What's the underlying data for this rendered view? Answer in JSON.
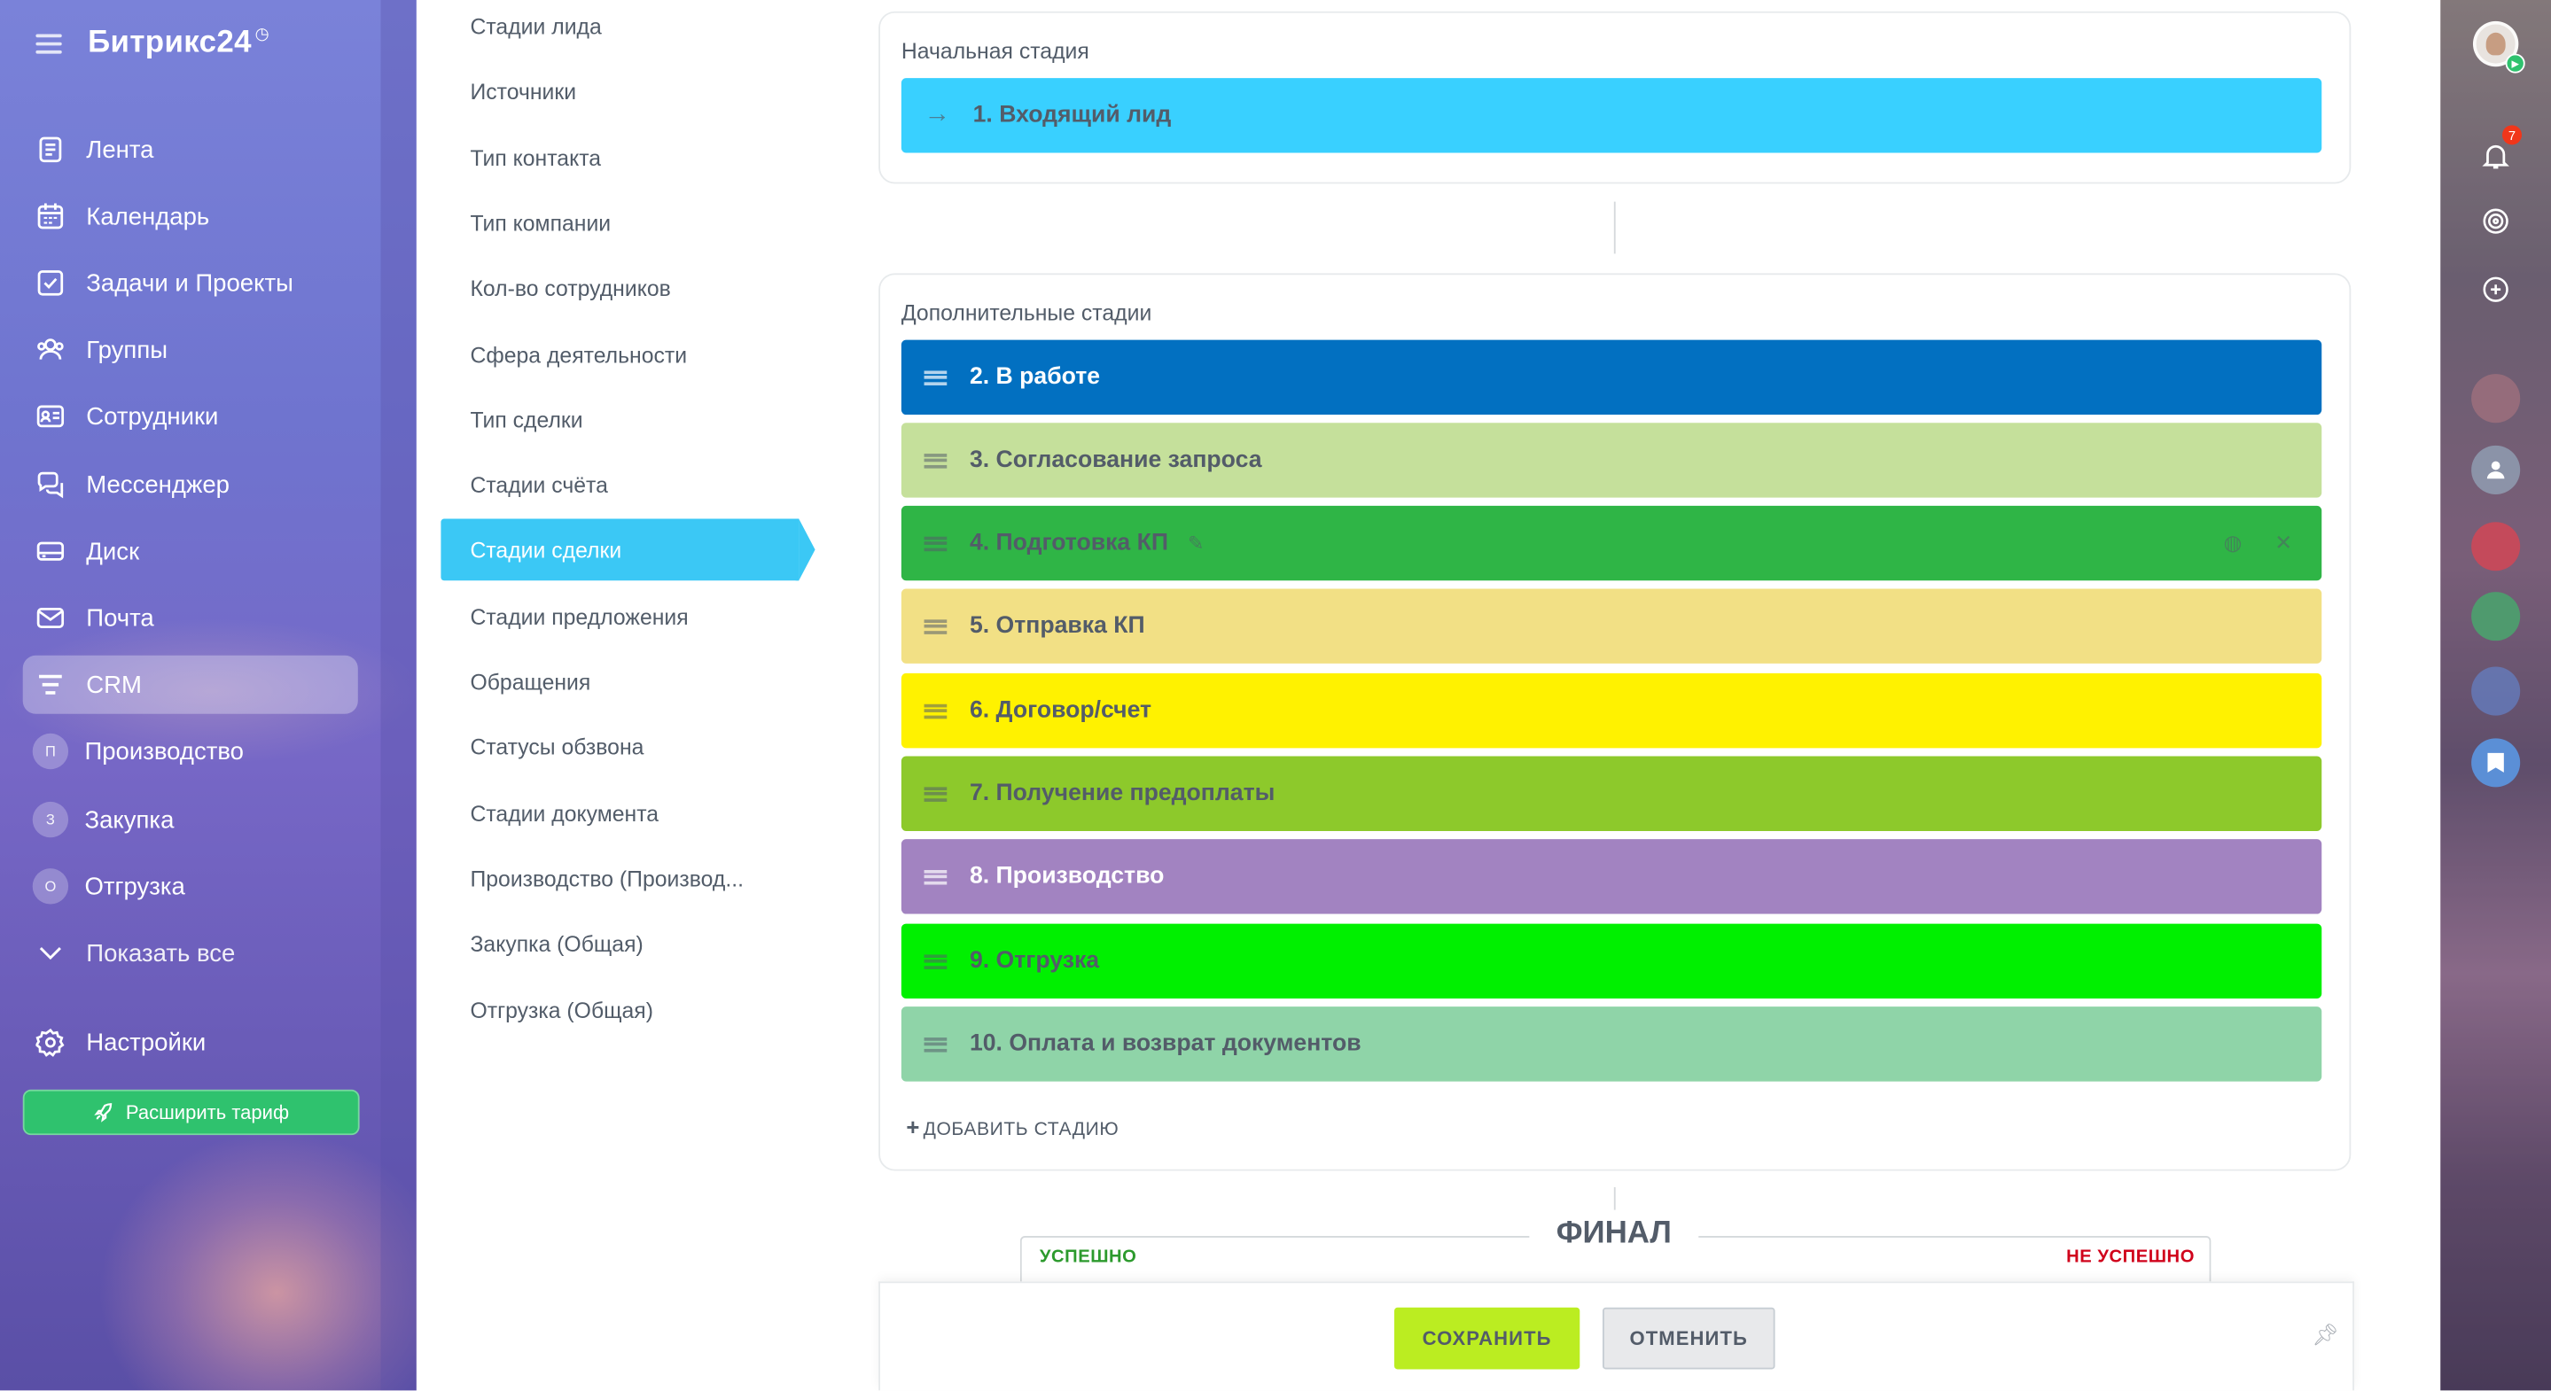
{
  "app": {
    "logo": "Битрикс24",
    "logo_mark": "◷"
  },
  "leftnav": {
    "items": [
      {
        "label": "Лента",
        "icon": "feed-icon"
      },
      {
        "label": "Календарь",
        "icon": "calendar-icon"
      },
      {
        "label": "Задачи и Проекты",
        "icon": "tasks-icon"
      },
      {
        "label": "Группы",
        "icon": "groups-icon"
      },
      {
        "label": "Сотрудники",
        "icon": "employees-icon"
      },
      {
        "label": "Мессенджер",
        "icon": "messenger-icon"
      },
      {
        "label": "Диск",
        "icon": "disk-icon"
      },
      {
        "label": "Почта",
        "icon": "mail-icon"
      },
      {
        "label": "CRM",
        "icon": "crm-icon"
      },
      {
        "label": "Производство",
        "letter": "П"
      },
      {
        "label": "Закупка",
        "letter": "З"
      },
      {
        "label": "Отгрузка",
        "letter": "О"
      }
    ],
    "show_all": "Показать все",
    "settings": "Настройки",
    "upgrade": "Расширить тариф"
  },
  "submenu": {
    "items": [
      "Стадии лида",
      "Источники",
      "Тип контакта",
      "Тип компании",
      "Кол-во сотрудников",
      "Сфера деятельности",
      "Тип сделки",
      "Стадии счёта",
      "Стадии сделки",
      "Стадии предложения",
      "Обращения",
      "Статусы обзвона",
      "Стадии документа",
      "Производство (Производ...",
      "Закупка (Общая)",
      "Отгрузка (Общая)"
    ],
    "active_index": 8
  },
  "initial": {
    "title": "Начальная стадия",
    "stage": {
      "label": "1. Входящий лид",
      "color": "#39d0ff"
    }
  },
  "additional": {
    "title": "Дополнительные стадии",
    "stages": [
      {
        "label": "2. В работе",
        "color": "#0270c1"
      },
      {
        "label": "3. Согласование запроса",
        "color": "#c5e09b"
      },
      {
        "label": "4. Подготовка КП",
        "color": "#2fb546"
      },
      {
        "label": "5. Отправка КП",
        "color": "#f2e085"
      },
      {
        "label": "6. Договор/счет",
        "color": "#fff200"
      },
      {
        "label": "7. Получение предоплаты",
        "color": "#8dc92b"
      },
      {
        "label": "8. Производство",
        "color": "#a283c1"
      },
      {
        "label": "9. Отгрузка",
        "color": "#00f000"
      },
      {
        "label": "10. Оплата и возврат документов",
        "color": "#8fd4a8"
      }
    ],
    "add_stage": "ДОБАВИТЬ СТАДИЮ"
  },
  "final": {
    "title": "ФИНАЛ",
    "success": "УСПЕШНО",
    "fail": "НЕ УСПЕШНО"
  },
  "buttons": {
    "save": "СОХРАНИТЬ",
    "cancel": "ОТМЕНИТЬ"
  },
  "notifications": {
    "count": "7"
  }
}
